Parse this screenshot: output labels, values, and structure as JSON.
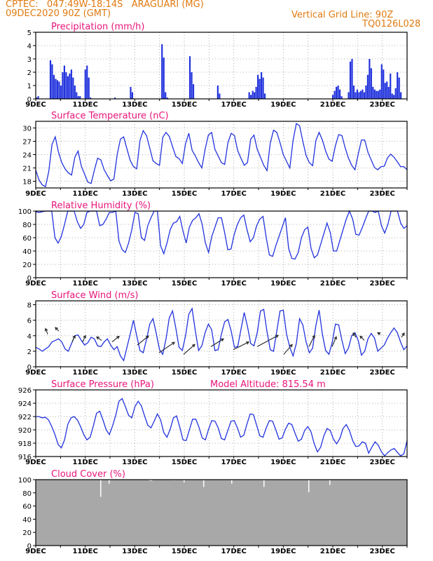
{
  "header": {
    "line1": "CPTEC:   047:49W-18:14S   ARAGUARI (MG)",
    "line2": "09DEC2020 90Z (GMT)",
    "grid_note": "Vertical Grid Line: 90Z",
    "code": "TQ0126L028"
  },
  "colors": {
    "header": "#e07a10",
    "title": "#e8157a",
    "line": "#2233dd",
    "bar": "#2233dd",
    "cloud": "#a8a8a8"
  },
  "x_tick_labels": [
    "9DEC",
    "11DEC",
    "13DEC",
    "15DEC",
    "17DEC",
    "19DEC",
    "21DEC",
    "23DEC"
  ],
  "chart_data": [
    {
      "type": "bar",
      "title": "Precipitation (mm/h)",
      "ylim": [
        0,
        5
      ],
      "yticks": [
        0,
        1,
        2,
        3,
        4,
        5
      ],
      "x_start": "09DEC2020",
      "x_step_hours": 3,
      "values": [
        0.1,
        0.2,
        0,
        0,
        0,
        0,
        0,
        0,
        2.9,
        2.6,
        1.8,
        1.5,
        1.4,
        1.3,
        1.0,
        2.0,
        2.5,
        2.0,
        1.7,
        1.9,
        2.2,
        1.6,
        1.0,
        0.5,
        0.2,
        0.2,
        0,
        0,
        2.2,
        2.5,
        1.6,
        0.1,
        0,
        0,
        0,
        0,
        0,
        0,
        0,
        0,
        0,
        0,
        0,
        0,
        0,
        0.1,
        0,
        0,
        0,
        0,
        0,
        0,
        0,
        0,
        0.9,
        0.5,
        0,
        0,
        0,
        0,
        0,
        0,
        0,
        0,
        0,
        0,
        0,
        0,
        0,
        0,
        0,
        0,
        4.1,
        3.1,
        0.5,
        0.1,
        0,
        0,
        0,
        0,
        0,
        0,
        0,
        0,
        0,
        0,
        0,
        0,
        3.2,
        2.0,
        1.1,
        0,
        0,
        0,
        0,
        0,
        0,
        0,
        0,
        0,
        0,
        0,
        0,
        0,
        1.0,
        0.4,
        0,
        0,
        0,
        0,
        0,
        0,
        0,
        0,
        0,
        0,
        0,
        0,
        0,
        0,
        0,
        0,
        0.5,
        0.3,
        0.6,
        0.5,
        0.9,
        1.8,
        1.5,
        2.0,
        1.6,
        0.4,
        0,
        0,
        0,
        0,
        0,
        0,
        0,
        0,
        0,
        0,
        0,
        0,
        0,
        0,
        0,
        0,
        0,
        0,
        0,
        0,
        0,
        0,
        0,
        0,
        0,
        0,
        0,
        0,
        0,
        0,
        0,
        0,
        0,
        0,
        0,
        0,
        0,
        0,
        0.3,
        0.6,
        0.9,
        1.0,
        0.7,
        0.2,
        0,
        0,
        0,
        0.5,
        2.8,
        3.0,
        1.0,
        0.5,
        0.7,
        0.5,
        0.6,
        0.7,
        0.5,
        1.0,
        1.8,
        3.0,
        2.3,
        0.9,
        0.7,
        0.6,
        0.6,
        0.7,
        2.6,
        2.2,
        1.2,
        1.3,
        0.9,
        1.9,
        0.4,
        0.3,
        0.8,
        2.0,
        1.6,
        0.5,
        0,
        0,
        0
      ]
    },
    {
      "type": "line",
      "title": "Surface Temperature (nC)",
      "ylim": [
        16.5,
        31.5
      ],
      "yticks": [
        18,
        21,
        24,
        27,
        30
      ],
      "x_start": "09DEC2020",
      "x_step_hours": 3,
      "values": [
        20.5,
        18.3,
        17.2,
        16.8,
        20.2,
        26.3,
        28.0,
        24.5,
        22.2,
        20.8,
        19.9,
        19.4,
        23.4,
        24.8,
        21.4,
        19.6,
        17.8,
        17.5,
        20.5,
        23.2,
        22.8,
        20.6,
        19.3,
        18.1,
        18.5,
        24.0,
        27.5,
        28.0,
        25.3,
        22.7,
        21.3,
        20.8,
        27.2,
        29.4,
        28.3,
        25.5,
        22.6,
        22.0,
        21.6,
        27.9,
        29.0,
        28.1,
        25.8,
        23.6,
        23.1,
        22.0,
        26.5,
        28.8,
        25.0,
        23.7,
        22.2,
        21.0,
        25.2,
        28.4,
        29.0,
        25.2,
        23.7,
        22.2,
        21.8,
        26.7,
        28.8,
        28.3,
        24.9,
        23.2,
        21.6,
        22.2,
        27.5,
        28.4,
        25.2,
        23.4,
        21.6,
        20.4,
        26.6,
        29.5,
        29.0,
        26.7,
        24.0,
        22.5,
        21.0,
        27.2,
        31.0,
        30.5,
        27.0,
        23.8,
        22.2,
        21.5,
        27.2,
        29.0,
        27.3,
        24.8,
        23.0,
        22.5,
        26.0,
        28.5,
        28.3,
        25.5,
        23.2,
        21.6,
        20.6,
        24.1,
        27.3,
        27.3,
        24.5,
        22.8,
        21.1,
        20.6,
        21.3,
        21.4,
        23.3,
        24.1,
        23.4,
        22.4,
        21.3,
        21.3,
        20.6
      ]
    },
    {
      "type": "line",
      "title": "Relative Humidity (%)",
      "ylim": [
        0,
        100
      ],
      "yticks": [
        0,
        20,
        40,
        60,
        80,
        100
      ],
      "x_start": "09DEC2020",
      "x_step_hours": 3,
      "values": [
        99,
        98,
        99,
        100,
        100,
        100,
        60,
        52,
        62,
        80,
        100,
        100,
        100,
        84,
        74,
        80,
        98,
        100,
        100,
        100,
        78,
        80,
        88,
        98,
        98,
        100,
        55,
        42,
        38,
        52,
        72,
        98,
        96,
        60,
        56,
        78,
        90,
        100,
        100,
        48,
        36,
        52,
        72,
        82,
        84,
        92,
        70,
        52,
        76,
        86,
        90,
        96,
        80,
        52,
        38,
        62,
        76,
        90,
        90,
        68,
        42,
        43,
        65,
        80,
        90,
        94,
        72,
        54,
        60,
        78,
        88,
        92,
        60,
        34,
        32,
        48,
        62,
        76,
        90,
        44,
        29,
        28,
        38,
        60,
        72,
        76,
        44,
        30,
        34,
        50,
        66,
        82,
        68,
        40,
        40,
        56,
        72,
        88,
        100,
        88,
        65,
        64,
        75,
        88,
        100,
        100,
        98,
        100,
        78,
        67,
        80,
        100,
        100,
        100,
        82,
        74,
        78
      ]
    },
    {
      "type": "line",
      "title": "Surface Wind (m/s)",
      "ylim": [
        0,
        8.5
      ],
      "yticks": [
        0,
        2,
        4,
        6,
        8
      ],
      "x_start": "09DEC2020",
      "x_step_hours": 3,
      "values": [
        2.5,
        2.3,
        2.0,
        2.3,
        2.6,
        3.2,
        3.4,
        3.6,
        3.2,
        2.3,
        2.0,
        3.0,
        4.0,
        4.1,
        3.4,
        2.8,
        3.1,
        3.8,
        3.6,
        2.7,
        2.6,
        3.2,
        3.6,
        2.8,
        2.2,
        2.6,
        1.4,
        0.8,
        2.5,
        4.2,
        6.0,
        4.0,
        2.1,
        1.8,
        3.5,
        5.5,
        6.2,
        4.3,
        2.2,
        1.6,
        3.6,
        6.3,
        7.2,
        5.0,
        2.5,
        2.1,
        4.0,
        6.8,
        7.5,
        4.6,
        2.1,
        2.7,
        4.4,
        5.5,
        4.8,
        2.1,
        2.2,
        4.2,
        5.8,
        6.1,
        4.6,
        2.5,
        2.6,
        4.8,
        7.0,
        5.2,
        3.0,
        2.7,
        4.4,
        7.2,
        7.4,
        4.5,
        2.2,
        2.0,
        4.6,
        7.2,
        7.3,
        4.2,
        2.5,
        1.4,
        3.0,
        6.2,
        5.4,
        3.2,
        1.8,
        2.4,
        5.3,
        7.3,
        4.2,
        2.1,
        1.6,
        3.1,
        5.5,
        5.4,
        3.4,
        1.7,
        2.4,
        4.0,
        4.4,
        3.4,
        1.5,
        2.0,
        3.6,
        4.3,
        3.7,
        2.0,
        2.4,
        2.8,
        3.7,
        4.4,
        5.0,
        4.4,
        3.2,
        2.2,
        2.7
      ]
    },
    {
      "type": "line",
      "title": "Surface Pressure (hPa)",
      "annotation": "Model Altitude: 815.54 m",
      "ylim": [
        916,
        926
      ],
      "yticks": [
        916,
        918,
        920,
        922,
        924,
        926
      ],
      "x_start": "09DEC2020",
      "x_step_hours": 3,
      "values": [
        922.0,
        922.0,
        921.8,
        921.9,
        921.5,
        920.5,
        919.3,
        917.8,
        917.3,
        918.5,
        920.8,
        921.8,
        922.0,
        921.5,
        920.5,
        919.3,
        918.5,
        918.9,
        920.6,
        922.5,
        922.8,
        921.5,
        920.0,
        919.3,
        920.6,
        922.2,
        924.3,
        924.7,
        923.5,
        922.2,
        921.8,
        923.5,
        924.3,
        923.6,
        922.1,
        920.7,
        920.3,
        921.3,
        922.4,
        921.5,
        919.6,
        918.9,
        920.1,
        921.8,
        922.1,
        920.4,
        918.5,
        918.4,
        920.0,
        921.6,
        921.6,
        920.4,
        918.8,
        918.5,
        920.1,
        921.4,
        921.3,
        920.3,
        918.7,
        918.5,
        919.9,
        921.3,
        921.4,
        920.3,
        918.9,
        919.2,
        920.9,
        922.4,
        922.3,
        920.7,
        919.1,
        918.9,
        920.3,
        921.4,
        921.3,
        920.0,
        918.6,
        918.8,
        920.1,
        921.0,
        920.8,
        919.5,
        918.3,
        918.6,
        919.9,
        920.5,
        919.7,
        917.9,
        916.7,
        917.4,
        919.1,
        920.2,
        919.9,
        918.6,
        917.9,
        918.7,
        920.2,
        920.8,
        919.9,
        918.4,
        917.5,
        917.6,
        918.2,
        918.0,
        916.5,
        917.4,
        918.2,
        917.7,
        916.7,
        916.1,
        916.6,
        917.0,
        917.2,
        916.6,
        916.1,
        916.4,
        918.4
      ]
    },
    {
      "type": "area",
      "title": "Cloud Cover (%)",
      "ylim": [
        0,
        100
      ],
      "yticks": [
        0,
        20,
        40,
        60,
        80,
        100
      ],
      "x_start": "09DEC2020",
      "x_step_hours": 3,
      "values": [
        100,
        100,
        100,
        100,
        100,
        100,
        100,
        100,
        100,
        100,
        100,
        100,
        100,
        100,
        100,
        100,
        100,
        100,
        100,
        100,
        100,
        100,
        100,
        100,
        100,
        100,
        100,
        100,
        100,
        100,
        100,
        100,
        100,
        100,
        100,
        100,
        98,
        100,
        100,
        100,
        100,
        100,
        100,
        100,
        100,
        100,
        100,
        100,
        100,
        100,
        100,
        100,
        100,
        100,
        100,
        100,
        100,
        100,
        100,
        100,
        100,
        100,
        100,
        100,
        100,
        100,
        100,
        100,
        100,
        100,
        100,
        100,
        100,
        100,
        100,
        100,
        100,
        100,
        100,
        100,
        100,
        100,
        100,
        100,
        100,
        100,
        100,
        100,
        100,
        100,
        100,
        100,
        100,
        100,
        100,
        100,
        100,
        100,
        100,
        100,
        100,
        100,
        100,
        100,
        100,
        100,
        100,
        100,
        100,
        100,
        100,
        100,
        100,
        100,
        100,
        100,
        100
      ]
    }
  ]
}
